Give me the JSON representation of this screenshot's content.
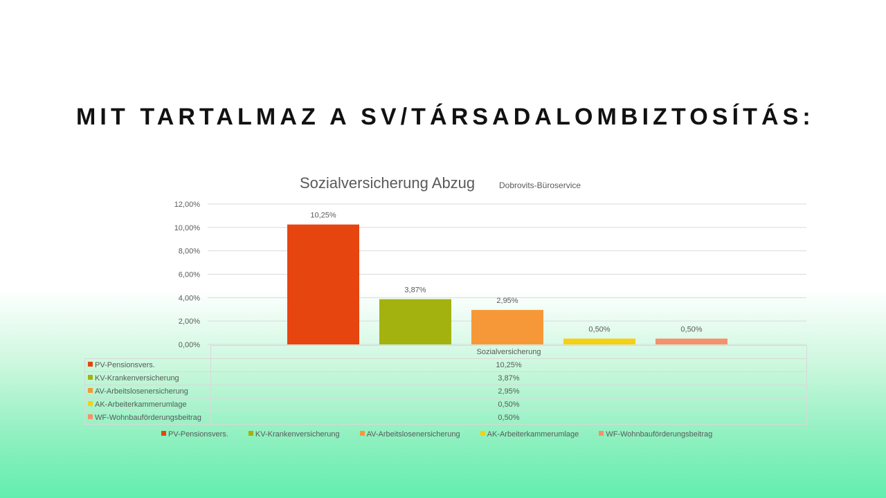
{
  "slide": {
    "title": "MIT TARTALMAZ A SV/TÁRSADALOMBIZTOSÍTÁS:"
  },
  "chart_data": {
    "type": "bar",
    "title": "Sozialversicherung Abzug",
    "subtitle": "Dobrovits-Büroservice",
    "category_label": "Sozialversicherung",
    "ylim": [
      0,
      12
    ],
    "ytick_step": 2,
    "ytick_labels": [
      "0,00%",
      "2,00%",
      "4,00%",
      "6,00%",
      "8,00%",
      "10,00%",
      "12,00%"
    ],
    "grid": true,
    "legend_position": "bottom",
    "series": [
      {
        "name": "PV-Pensionsvers.",
        "value": 10.25,
        "label": "10,25%",
        "color": "#e64510"
      },
      {
        "name": "KV-Krankenversicherung",
        "value": 3.87,
        "label": "3,87%",
        "color": "#a3b20f"
      },
      {
        "name": "AV-Arbeitslosenersicherung",
        "value": 2.95,
        "label": "2,95%",
        "color": "#f79838"
      },
      {
        "name": "AK-Arbeiterkammerumlage",
        "value": 0.5,
        "label": "0,50%",
        "color": "#f5d015"
      },
      {
        "name": "WF-Wohnbauförderungsbeitrag",
        "value": 0.5,
        "label": "0,50%",
        "color": "#f5916b"
      }
    ]
  }
}
